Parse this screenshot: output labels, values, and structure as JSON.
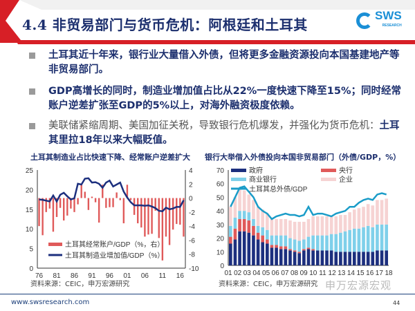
{
  "header": {
    "title": "4.4 非贸易部门与货币危机：阿根廷和土耳其",
    "logo_text": "SWS",
    "logo_sub": "RESEARCH",
    "accent": "#d71f26"
  },
  "bullets": [
    {
      "parts": [
        {
          "text": "土耳其近十年来，银行业大量借入外债，但将更多金融资源投向本国基建地产等非贸易部门。"
        }
      ]
    },
    {
      "parts": [
        {
          "text": "GDP高增长的同时，制造业增加值占比从22%一度快速下降至15%；同时经常账户逆差扩张至GDP的5%以上，对海外融资极度依赖。"
        }
      ]
    },
    {
      "parts": [
        {
          "text": "美联储紧缩周期、美国加征关税，导致银行危机爆发，并强化为货币危机："
        },
        {
          "text": "土耳其里拉18年以来大幅贬值。"
        }
      ]
    }
  ],
  "footer": {
    "url": "www.swsresearch.com",
    "page": "44",
    "watermark": "申万宏源宏观"
  },
  "chart_data": [
    {
      "type": "bar+line",
      "title": "土耳其制造业占比快速下降、经常账户逆差扩大",
      "source": "资料来源：CEIC，申万宏源研究",
      "x": [
        1976,
        1977,
        1978,
        1979,
        1980,
        1981,
        1982,
        1983,
        1984,
        1985,
        1986,
        1987,
        1988,
        1989,
        1990,
        1991,
        1992,
        1993,
        1994,
        1995,
        1996,
        1997,
        1998,
        1999,
        2000,
        2001,
        2002,
        2003,
        2004,
        2005,
        2006,
        2007,
        2008,
        2009,
        2010,
        2011,
        2012,
        2013,
        2014,
        2015,
        2016,
        2017
      ],
      "x_tick_labels": [
        "76",
        "81",
        "86",
        "91",
        "96",
        "01",
        "06",
        "11",
        "16"
      ],
      "ylim_left": [
        0,
        25
      ],
      "yticks_left": [
        0,
        5,
        10,
        15,
        20,
        25
      ],
      "ylim_right": [
        -10,
        4
      ],
      "yticks_right": [
        -10,
        -8,
        -6,
        -4,
        -2,
        0,
        2,
        4
      ],
      "legend": "bottom-left",
      "series": [
        {
          "name": "土耳其经常账户/GDP（%，右）",
          "type": "bar",
          "axis": "right",
          "color": "#e05a5a",
          "values": [
            -4,
            -5.3,
            -2,
            -1.5,
            -4.8,
            -2.7,
            -1.4,
            -3.2,
            -2.5,
            -1.5,
            -2,
            -0.9,
            1.9,
            0.9,
            -1.7,
            0.2,
            -0.6,
            -3.5,
            1.9,
            -1.4,
            -1.3,
            -1.3,
            0.8,
            -0.3,
            -3.6,
            1.9,
            -0.3,
            -2.4,
            -3.6,
            -4.2,
            -5.5,
            -5.2,
            -5.1,
            -1.8,
            -5.7,
            -8.9,
            -5.5,
            -6.7,
            -4.5,
            -3.7,
            -3.8,
            -5.5
          ]
        },
        {
          "name": "土耳其制造业增加值/GDP（%）",
          "type": "line",
          "axis": "left",
          "color": "#1c2f7e",
          "values": [
            17.5,
            17.4,
            17.2,
            17,
            18.5,
            17,
            18.7,
            19.2,
            18.3,
            17.5,
            17.8,
            21.5,
            21.3,
            22.8,
            22.9,
            21.8,
            21.9,
            21.5,
            20.5,
            21.8,
            22.3,
            20.8,
            21.3,
            21.8,
            19.5,
            18,
            16.8,
            16,
            16,
            16,
            15.9,
            16,
            15.7,
            15.3,
            14.6,
            14.5,
            15.4,
            15,
            15.2,
            15.6,
            15.6,
            17.3
          ]
        }
      ]
    },
    {
      "type": "stacked-bar+line",
      "title": "银行大举借入外债投向本国非贸易部门（外债/GDP，%）",
      "source": "资料来源：CEIC，申万宏源研究",
      "x": [
        2001,
        2001.5,
        2002,
        2002.5,
        2003,
        2003.5,
        2004,
        2004.5,
        2005,
        2005.5,
        2006,
        2006.5,
        2007,
        2007.5,
        2008,
        2008.5,
        2009,
        2009.5,
        2010,
        2010.5,
        2011,
        2011.5,
        2012,
        2012.5,
        2013,
        2013.5,
        2014,
        2014.5,
        2015,
        2015.5,
        2016,
        2016.5,
        2017,
        2017.5,
        2018
      ],
      "x_tick_labels": [
        "01",
        "02",
        "03",
        "04",
        "05",
        "06",
        "07",
        "08",
        "09",
        "10",
        "11",
        "12",
        "13",
        "14",
        "15",
        "16",
        "17",
        "18"
      ],
      "ylim": [
        0,
        70
      ],
      "yticks": [
        0,
        10,
        20,
        30,
        40,
        50,
        60,
        70
      ],
      "legend": "top",
      "series": [
        {
          "name": "政府",
          "type": "bar",
          "color": "#1c2f7e",
          "values": [
            16,
            19,
            25,
            25,
            24,
            22,
            19,
            17,
            16,
            13,
            13,
            12,
            12,
            11,
            10,
            9,
            11,
            12,
            11,
            11,
            11,
            11,
            11,
            10,
            10,
            10,
            10,
            10,
            10,
            10,
            10,
            10,
            11,
            11,
            11
          ]
        },
        {
          "name": "央行",
          "type": "bar",
          "color": "#e05a5a",
          "values": [
            5,
            8,
            9,
            9,
            9,
            7,
            5,
            5,
            3,
            2,
            2,
            2,
            2,
            1,
            1,
            1,
            1,
            1,
            1,
            0,
            0,
            0,
            0,
            0,
            0,
            0,
            0,
            0,
            0,
            0,
            0,
            0,
            0,
            0,
            0
          ]
        },
        {
          "name": "商业银行",
          "type": "bar",
          "color": "#7fd0ea",
          "values": [
            8,
            8,
            6,
            6,
            6,
            5,
            5,
            6,
            7,
            7,
            7,
            8,
            8,
            8,
            8,
            8,
            7,
            8,
            10,
            11,
            11,
            11,
            12,
            13,
            14,
            15,
            16,
            17,
            17,
            18,
            19,
            18,
            19,
            19,
            19
          ]
        },
        {
          "name": "企业",
          "type": "bar",
          "color": "#f6d3d3",
          "values": [
            14,
            15,
            17,
            15,
            13,
            14,
            14,
            13,
            12,
            12,
            12,
            12,
            12,
            13,
            13,
            14,
            13,
            13,
            14,
            14,
            14,
            14,
            13,
            13,
            13,
            12,
            13,
            14,
            15,
            15,
            16,
            16,
            18,
            18,
            19
          ]
        },
        {
          "name": "土耳其总外债/GDP",
          "type": "line",
          "color": "#1a9cc8",
          "values": [
            43,
            50,
            57,
            58,
            54,
            50,
            43,
            40,
            38,
            34,
            36,
            37,
            38,
            37,
            37,
            36,
            37,
            43,
            37,
            38,
            38,
            37,
            36,
            38,
            39,
            40,
            43,
            43,
            46,
            48,
            49,
            48,
            52,
            53,
            52
          ]
        }
      ]
    }
  ]
}
